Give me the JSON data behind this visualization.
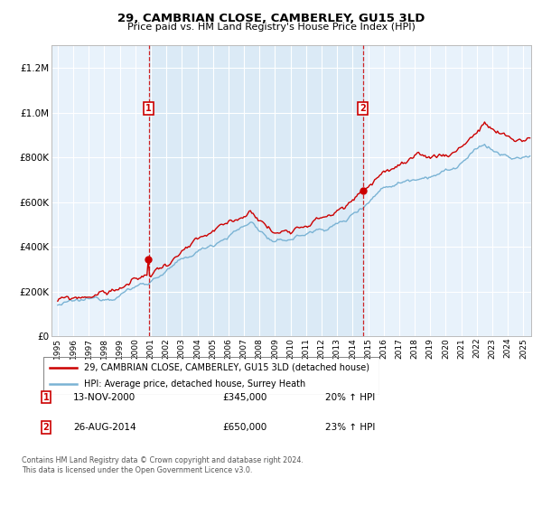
{
  "title": "29, CAMBRIAN CLOSE, CAMBERLEY, GU15 3LD",
  "subtitle": "Price paid vs. HM Land Registry's House Price Index (HPI)",
  "legend_line1": "29, CAMBRIAN CLOSE, CAMBERLEY, GU15 3LD (detached house)",
  "legend_line2": "HPI: Average price, detached house, Surrey Heath",
  "annotation1": {
    "num": "1",
    "date": "13-NOV-2000",
    "price": "£345,000",
    "change": "20% ↑ HPI"
  },
  "annotation2": {
    "num": "2",
    "date": "26-AUG-2014",
    "price": "£650,000",
    "change": "23% ↑ HPI"
  },
  "copyright": "Contains HM Land Registry data © Crown copyright and database right 2024.\nThis data is licensed under the Open Government Licence v3.0.",
  "hpi_color": "#7ab3d4",
  "price_color": "#cc0000",
  "dashed_vline_color": "#cc0000",
  "plot_bg_color": "#e8f2fb",
  "shaded_color": "#daeaf6",
  "ylim": [
    0,
    1300000
  ],
  "yticks": [
    0,
    200000,
    400000,
    600000,
    800000,
    1000000,
    1200000
  ],
  "xlim_start": 1994.6,
  "xlim_end": 2025.5,
  "vline1_x": 2000.87,
  "vline2_x": 2014.65,
  "sale1_price": 345000,
  "sale2_price": 650000,
  "sale1_x": 2000.87,
  "sale2_x": 2014.65
}
